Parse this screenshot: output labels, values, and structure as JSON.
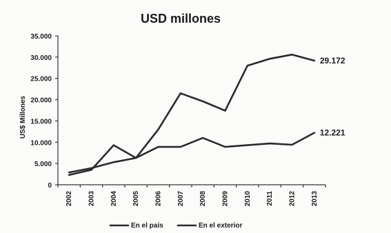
{
  "chart_data": {
    "type": "line",
    "title": "USD millones",
    "ylabel": "US$ Millones",
    "xlabel": "",
    "categories": [
      "2002",
      "2003",
      "2004",
      "2005",
      "2006",
      "2007",
      "2008",
      "2009",
      "2010",
      "2011",
      "2012",
      "2013"
    ],
    "ylim": [
      0,
      35000
    ],
    "yticks": [
      0,
      5000,
      10000,
      15000,
      20000,
      25000,
      30000,
      35000
    ],
    "ytick_labels": [
      "0",
      "5.000",
      "10.000",
      "15.000",
      "20.000",
      "25.000",
      "30.000",
      "35.000"
    ],
    "grid": false,
    "legend_position": "bottom",
    "line_color": "#2a2a2a",
    "series": [
      {
        "name": "En el país",
        "values": [
          2900,
          3900,
          5300,
          6300,
          8900,
          8900,
          11000,
          8900,
          9300,
          9700,
          9400,
          12221
        ],
        "end_label": "12.221"
      },
      {
        "name": "En el exterior",
        "values": [
          2300,
          3500,
          9300,
          6300,
          13000,
          21500,
          19600,
          17400,
          28000,
          29600,
          30600,
          29172
        ],
        "end_label": "29.172"
      }
    ]
  }
}
